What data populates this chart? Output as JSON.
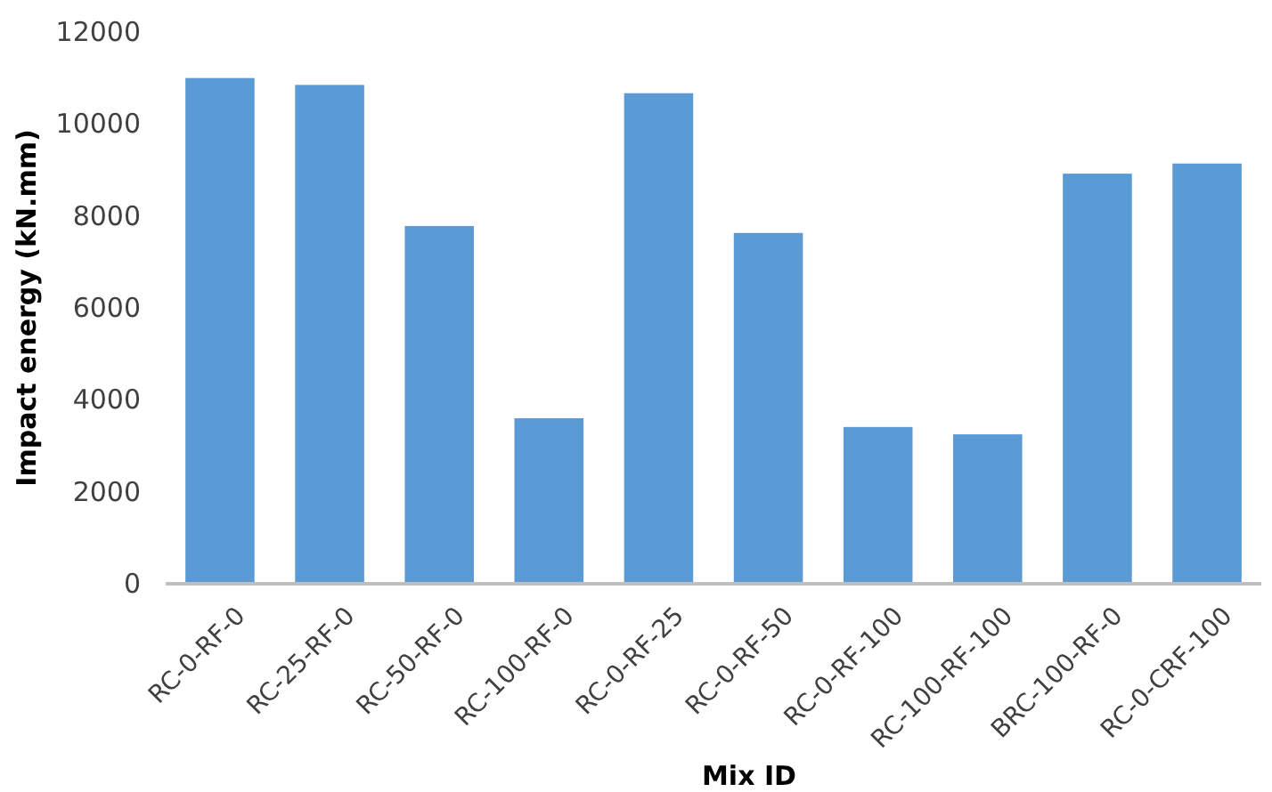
{
  "chart_data": {
    "type": "bar",
    "xlabel": "Mix ID",
    "ylabel": "Impact energy (kN.mm)",
    "categories": [
      "RC-0-RF-0",
      "RC-25-RF-0",
      "RC-50-RF-0",
      "RC-100-RF-0",
      "RC-0-RF-25",
      "RC-0-RF-50",
      "RC-0-RF-100",
      "RC-100-RF-100",
      "BRC-100-RF-0",
      "RC-0-CRF-100"
    ],
    "values": [
      11000,
      10850,
      7780,
      3600,
      10670,
      7630,
      3410,
      3250,
      8920,
      9140
    ],
    "color": "#5b9bd5",
    "ylim": [
      0,
      12000
    ],
    "yticks": [
      0,
      2000,
      4000,
      6000,
      8000,
      10000,
      12000
    ],
    "grid": false
  }
}
